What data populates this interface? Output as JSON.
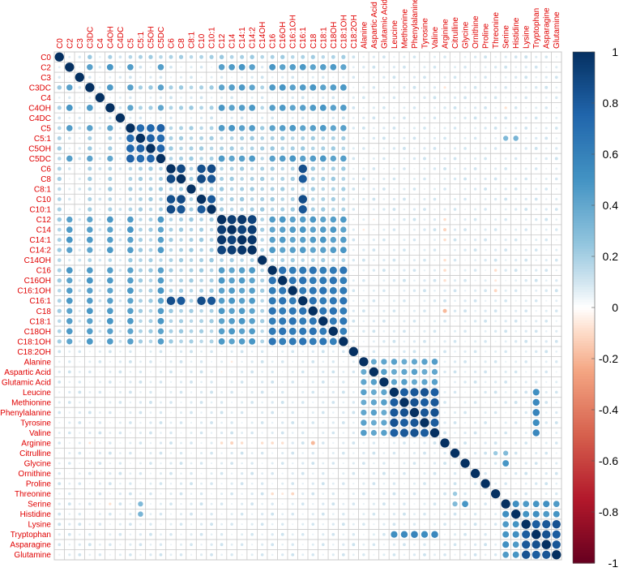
{
  "chart_data": {
    "type": "heatmap",
    "method": "circle",
    "labels": [
      "C0",
      "C2",
      "C3",
      "C3DC",
      "C4",
      "C4OH",
      "C4DC",
      "C5",
      "C5:1",
      "C5OH",
      "C5DC",
      "C6",
      "C8",
      "C8:1",
      "C10",
      "C10:1",
      "C12",
      "C14",
      "C14:1",
      "C14:2",
      "C14OH",
      "C16",
      "C16OH",
      "C16:1OH",
      "C16:1",
      "C18",
      "C18:1",
      "C18OH",
      "C18:1OH",
      "C18:2OH",
      "Alanine",
      "Aspartic Acid",
      "Glutamic Acid",
      "Leucine",
      "Methionine",
      "Phenylalanine",
      "Tyrosine",
      "Valine",
      "Arginine",
      "Citrulline",
      "Glycine",
      "Ornithine",
      "Proline",
      "Threonine",
      "Serine",
      "Histidine",
      "Lysine",
      "Tryptophan",
      "Asparagine",
      "Glutamine"
    ],
    "groups": [
      {
        "members": [
          1,
          3,
          5,
          7,
          10,
          16,
          17,
          18,
          19,
          21,
          22,
          23,
          24,
          25,
          26,
          27,
          28
        ],
        "value": 0.45
      },
      {
        "members": [
          11,
          12,
          14,
          15,
          24
        ],
        "value": 0.85
      },
      {
        "members": [
          16,
          17,
          18,
          19
        ],
        "value": 0.95
      },
      {
        "members": [
          21,
          22,
          23,
          24,
          25,
          26,
          27,
          28
        ],
        "value": 0.65
      },
      {
        "members": [
          7,
          8,
          9,
          10
        ],
        "value": 0.75
      },
      {
        "members": [
          30,
          31,
          32,
          33,
          34,
          35,
          36,
          37
        ],
        "value": 0.42
      },
      {
        "members": [
          33,
          34,
          35,
          36,
          37
        ],
        "value": 0.82
      },
      {
        "members": [
          33,
          34,
          35,
          36,
          37,
          47
        ],
        "value": 0.55
      },
      {
        "members": [
          44,
          45,
          46,
          47,
          48,
          49
        ],
        "value": 0.5
      },
      {
        "members": [
          46,
          47,
          48,
          49
        ],
        "value": 0.82
      },
      {
        "members": [
          0,
          3,
          5,
          7,
          8,
          9,
          10,
          11,
          12,
          13,
          14,
          15,
          16,
          17,
          18,
          19,
          20,
          21,
          22,
          23,
          24,
          25,
          26,
          27,
          28
        ],
        "value": 0.2
      },
      {
        "members": [
          0,
          1,
          2,
          3,
          4,
          5,
          6,
          7,
          8,
          9,
          10,
          11,
          12,
          13,
          14,
          15,
          16,
          17,
          18,
          19,
          20,
          21,
          22,
          23,
          24,
          25,
          26,
          27,
          28,
          29,
          30,
          31,
          32,
          33,
          34,
          35,
          36,
          37,
          38,
          39,
          40,
          41,
          42,
          43,
          44,
          45,
          46,
          47,
          48,
          49
        ],
        "value": 0.08
      }
    ],
    "overrides": [
      {
        "i": 38,
        "j": 16,
        "value": -0.12
      },
      {
        "i": 38,
        "j": 17,
        "value": -0.1
      },
      {
        "i": 38,
        "j": 18,
        "value": -0.1
      },
      {
        "i": 38,
        "j": 21,
        "value": -0.12
      },
      {
        "i": 38,
        "j": 25,
        "value": -0.18
      },
      {
        "i": 38,
        "j": 3,
        "value": -0.1
      },
      {
        "i": 44,
        "j": 5,
        "value": -0.08
      },
      {
        "i": 43,
        "j": 21,
        "value": -0.08
      },
      {
        "i": 43,
        "j": 22,
        "value": -0.08
      },
      {
        "i": 43,
        "j": 23,
        "value": -0.08
      },
      {
        "i": 30,
        "j": 17,
        "value": -0.08
      },
      {
        "i": 31,
        "j": 16,
        "value": -0.06
      },
      {
        "i": 38,
        "j": 20,
        "value": -0.08
      },
      {
        "i": 38,
        "j": 22,
        "value": -0.06
      },
      {
        "i": 46,
        "j": 0,
        "value": 0.15
      },
      {
        "i": 40,
        "j": 44,
        "value": 0.45
      },
      {
        "i": 39,
        "j": 43,
        "value": 0.25
      },
      {
        "i": 44,
        "j": 8,
        "value": 0.3
      },
      {
        "i": 45,
        "j": 8,
        "value": 0.3
      },
      {
        "i": 44,
        "j": 39,
        "value": 0.3
      }
    ],
    "colorbar": {
      "min": -1,
      "max": 1,
      "ticks": [
        "1",
        "0.8",
        "0.6",
        "0.4",
        "0.2",
        "0",
        "-0.2",
        "-0.4",
        "-0.6",
        "-0.8",
        "-1"
      ]
    },
    "colors": {
      "negative_end": "#67001F",
      "zero": "#FFFFFF",
      "positive_end": "#053061",
      "labels": "#E00000",
      "grid": "#C8C8C8"
    },
    "grid": true,
    "legend": "right"
  }
}
